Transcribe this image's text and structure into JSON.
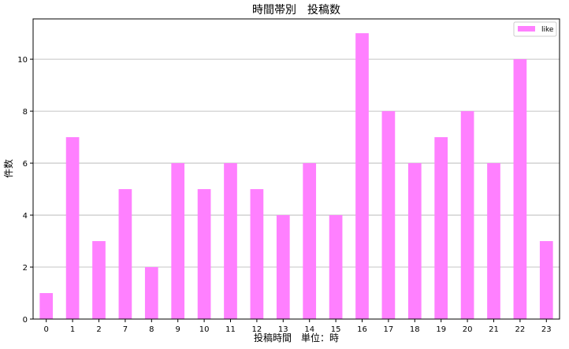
{
  "chart_data": {
    "type": "bar",
    "title": "時間帯別　投稿数",
    "xlabel": "投稿時間　単位：時",
    "ylabel": "件数",
    "categories": [
      "0",
      "1",
      "2",
      "7",
      "8",
      "9",
      "10",
      "11",
      "12",
      "13",
      "14",
      "15",
      "16",
      "17",
      "18",
      "19",
      "20",
      "21",
      "22",
      "23"
    ],
    "series": [
      {
        "name": "like",
        "values": [
          1,
          7,
          3,
          5,
          2,
          6,
          5,
          6,
          5,
          4,
          6,
          4,
          11,
          8,
          6,
          7,
          8,
          6,
          10,
          3
        ],
        "color": "#ff80ff"
      }
    ],
    "ylim": [
      0,
      11.55
    ],
    "yticks": [
      0,
      2,
      4,
      6,
      8,
      10
    ],
    "grid": "y",
    "legend_position": "top-right"
  }
}
